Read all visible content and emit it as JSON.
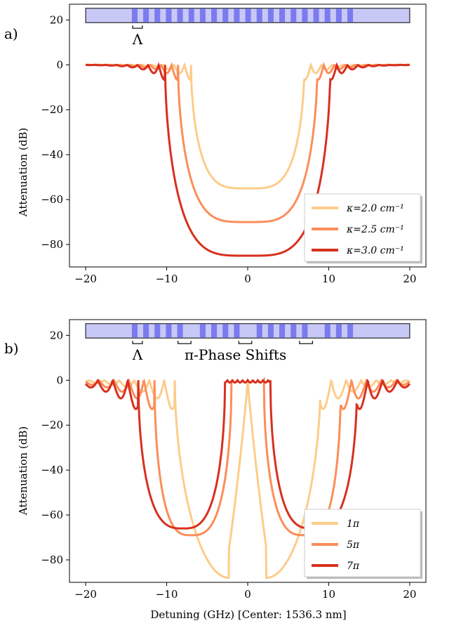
{
  "colors": {
    "light": "#fdcc8a",
    "mid": "#fc8d59",
    "dark": "#d7301f",
    "grating": "#7b7bef",
    "grating_light": "#c8c8f7"
  },
  "xlabel": "Detuning (GHz) [Center: 1536.3 nm]",
  "chart_data": [
    {
      "type": "line",
      "panel_label": "a)",
      "ylabel": "Attenuation (dB)",
      "xlim": [
        -22,
        22
      ],
      "ylim": [
        -90,
        27
      ],
      "xticks": [
        -20,
        -10,
        0,
        10,
        20
      ],
      "xtick_labels": [
        "−20",
        "−10",
        "0",
        "10",
        "20"
      ],
      "yticks": [
        20,
        0,
        -20,
        -40,
        -60,
        -80
      ],
      "ytick_labels": [
        "20",
        "0",
        "−20",
        "−40",
        "−60",
        "−80"
      ],
      "grating": {
        "y": 22,
        "x_start": -20,
        "x_end": 20,
        "stripes_start": -14.3,
        "stripes_end": 13.7,
        "period": 1.4,
        "shifts": []
      },
      "annotations": [
        {
          "text": "Λ",
          "x": -13.6,
          "y": 12,
          "bracket_x": [
            -14.2,
            -13.0
          ]
        }
      ],
      "legend_position": "lower-right",
      "series": [
        {
          "name": "κ=2.0 cm⁻¹",
          "color": "#fdcc8a",
          "kind": "uniform",
          "depth": 55,
          "edge": 7.0
        },
        {
          "name": "κ=2.5 cm⁻¹",
          "color": "#fc8d59",
          "kind": "uniform",
          "depth": 70,
          "edge": 8.6
        },
        {
          "name": "κ=3.0 cm⁻¹",
          "color": "#d7301f",
          "kind": "uniform",
          "depth": 85,
          "edge": 10.2
        }
      ]
    },
    {
      "type": "line",
      "panel_label": "b)",
      "ylabel": "Attenuation (dB)",
      "xlim": [
        -22,
        22
      ],
      "ylim": [
        -90,
        27
      ],
      "xticks": [
        -20,
        -10,
        0,
        10,
        20
      ],
      "xtick_labels": [
        "−20",
        "−10",
        "0",
        "10",
        "20"
      ],
      "yticks": [
        20,
        0,
        -20,
        -40,
        -60,
        -80
      ],
      "ytick_labels": [
        "20",
        "0",
        "−20",
        "−40",
        "−60",
        "−80"
      ],
      "grating": {
        "y": 22,
        "x_start": -20,
        "x_end": 20,
        "stripes_start": -14.3,
        "stripes_end": 13.7,
        "period": 1.4,
        "shifts": [
          -7.8,
          -0.3,
          7.2
        ]
      },
      "annotations": [
        {
          "text": "Λ",
          "x": -13.6,
          "y": 12,
          "bracket_x": [
            -14.2,
            -13.0
          ]
        },
        {
          "text": "π-Phase Shifts",
          "x": -1.5,
          "y": 12,
          "bracket_x": []
        }
      ],
      "phase_brackets": [
        [
          -8.6,
          -7.0
        ],
        [
          -1.1,
          0.5
        ],
        [
          6.4,
          8.0
        ]
      ],
      "legend_position": "lower-right",
      "series": [
        {
          "name": "1π",
          "color": "#fdcc8a",
          "kind": "pishift",
          "depth": 88,
          "edge": 9.0,
          "notch": 2.3,
          "plateau": 0
        },
        {
          "name": "5π",
          "color": "#fc8d59",
          "kind": "pishift",
          "depth": 69,
          "edge": 11.5,
          "notch": 7.0,
          "plateau": 2.0
        },
        {
          "name": "7π",
          "color": "#d7301f",
          "kind": "pishift",
          "depth": 66,
          "edge": 13.5,
          "notch": 8.0,
          "plateau": 2.8
        }
      ]
    }
  ]
}
